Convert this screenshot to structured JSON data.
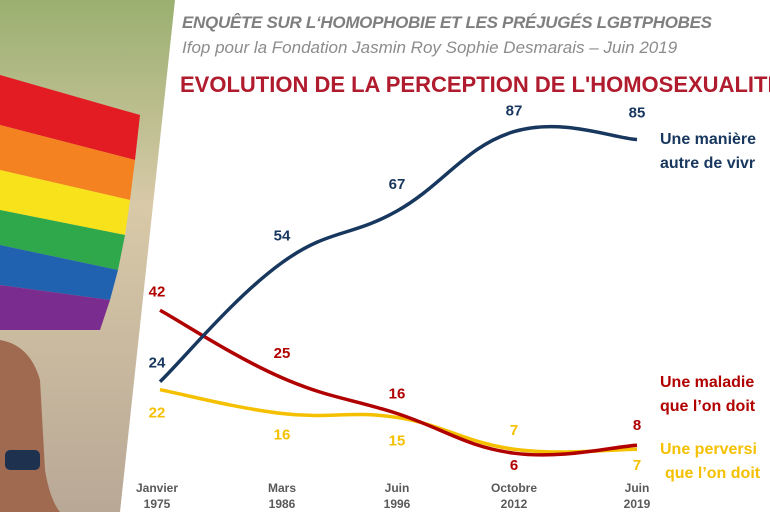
{
  "header": {
    "line1": "ENQUÊTE SUR L‘HOMOPHOBIE ET LES PRÉJUGÉS LGBTPHOBES",
    "line2": "Ifop pour la Fondation Jasmin Roy Sophie Desmarais – Juin 2019"
  },
  "chart_data": {
    "type": "line",
    "title": "EVOLUTION DE LA PERCEPTION DE L'HOMOSEXUALITÉ",
    "categories": [
      [
        "Janvier",
        "1975"
      ],
      [
        "Mars",
        "1986"
      ],
      [
        "Juin",
        "1996"
      ],
      [
        "Octobre",
        "2012"
      ],
      [
        "Juin",
        "2019"
      ]
    ],
    "ylim": [
      0,
      90
    ],
    "grid": false,
    "legend": "right",
    "series": [
      {
        "name": [
          "Une manière",
          "autre de vivr"
        ],
        "color": "#17375e",
        "values": [
          24,
          54,
          67,
          87,
          85
        ]
      },
      {
        "name": [
          "Une maladie",
          "que l’on doit"
        ],
        "color": "#b00000",
        "values": [
          42,
          25,
          16,
          6,
          8
        ]
      },
      {
        "name": [
          "Une perversi",
          "que l’on doit"
        ],
        "color": "#f5c000",
        "values": [
          22,
          16,
          15,
          7,
          7
        ]
      }
    ]
  }
}
